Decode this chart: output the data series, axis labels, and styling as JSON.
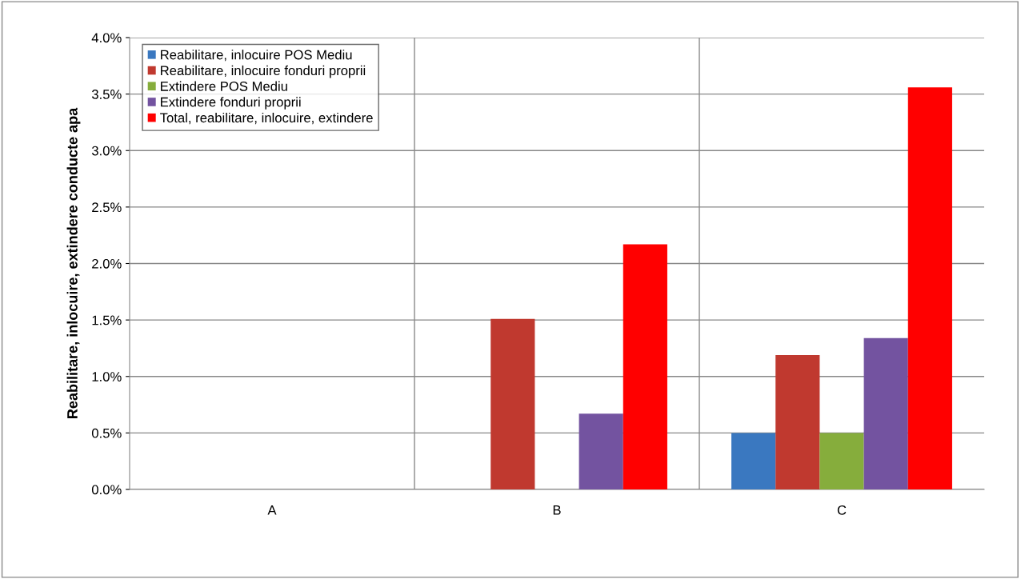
{
  "chart_data": {
    "type": "bar",
    "ylabel": "Reabilitare, inlocuire, extindere conducte apa",
    "categories": [
      "A",
      "B",
      "C"
    ],
    "series": [
      {
        "name": "Reabilitare, inlocuire POS Mediu",
        "color": "#3a78c0",
        "values": [
          null,
          null,
          0.5
        ]
      },
      {
        "name": "Reabilitare, inlocuire fonduri proprii",
        "color": "#c0392f",
        "values": [
          null,
          1.51,
          1.19
        ]
      },
      {
        "name": "Extindere POS Mediu",
        "color": "#86ad3c",
        "values": [
          null,
          null,
          0.5
        ]
      },
      {
        "name": "Extindere fonduri proprii",
        "color": "#7353a0",
        "values": [
          null,
          0.67,
          1.34
        ]
      },
      {
        "name": "Total, reabilitare, inlocuire, extindere",
        "color": "#ff0000",
        "values": [
          null,
          2.17,
          3.56
        ]
      }
    ],
    "ylim": [
      0,
      4.0
    ],
    "yticks": [
      {
        "value": 0,
        "label": "0.0%"
      },
      {
        "value": 0.5,
        "label": "0.5%"
      },
      {
        "value": 1.0,
        "label": "1.0%"
      },
      {
        "value": 1.5,
        "label": "1.5%"
      },
      {
        "value": 2.0,
        "label": "2.0%"
      },
      {
        "value": 2.5,
        "label": "2.5%"
      },
      {
        "value": 3.0,
        "label": "3.0%"
      },
      {
        "value": 3.5,
        "label": "3.5%"
      },
      {
        "value": 4.0,
        "label": "4.0%"
      }
    ],
    "grid": true,
    "legend": "top left"
  }
}
